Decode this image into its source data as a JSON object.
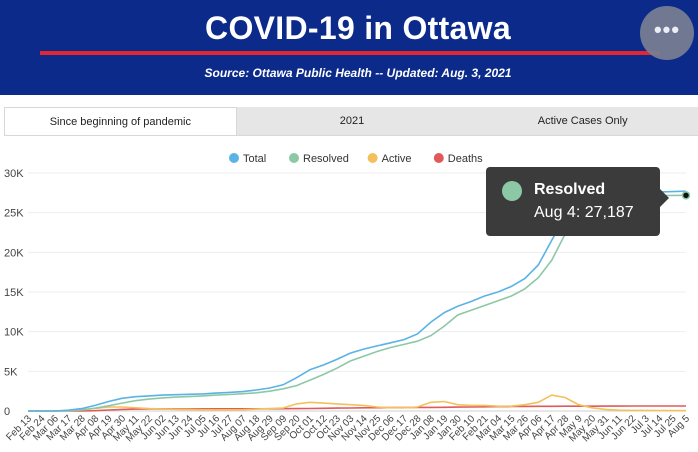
{
  "header": {
    "title": "COVID-19 in Ottawa",
    "subtitle": "Source:  Ottawa Public Health -- Updated:  Aug. 3, 2021",
    "background": "#0b2a8a",
    "accent": "#e3262f",
    "menu_icon": "more-horizontal-icon"
  },
  "tabs": [
    {
      "label": "Since beginning of pandemic",
      "active": true
    },
    {
      "label": "2021",
      "active": false
    },
    {
      "label": "Active Cases Only",
      "active": false
    }
  ],
  "tooltip": {
    "series": "Resolved",
    "value": "Aug 4: 27,187",
    "color": "#8dc8a6"
  },
  "chart_data": {
    "type": "line",
    "legend_position": "top-center",
    "grid": true,
    "ylim": [
      0,
      30000
    ],
    "yticks": [
      0,
      5000,
      10000,
      15000,
      20000,
      25000,
      30000
    ],
    "ytick_labels": [
      "0",
      "5K",
      "10K",
      "15K",
      "20K",
      "25K",
      "30K"
    ],
    "x": [
      "Feb 13",
      "Feb 24",
      "Mar 06",
      "Mar 17",
      "Mar 28",
      "Apr 08",
      "Apr 19",
      "Apr 30",
      "May 11",
      "May 22",
      "Jun 02",
      "Jun 13",
      "Jun 24",
      "Jul 05",
      "Jul 16",
      "Jul 27",
      "Aug 07",
      "Aug 18",
      "Aug 29",
      "Sep 09",
      "Sep 20",
      "Oct 01",
      "Oct 12",
      "Oct 23",
      "Nov 03",
      "Nov 14",
      "Nov 25",
      "Dec 06",
      "Dec 17",
      "Dec 28",
      "Jan 08",
      "Jan 19",
      "Jan 30",
      "Feb 10",
      "Feb 21",
      "Mar 04",
      "Mar 15",
      "Mar 26",
      "Apr 06",
      "Apr 17",
      "Apr 28",
      "May 9",
      "May 20",
      "May 31",
      "Jun 11",
      "Jun 22",
      "Jul 3",
      "Jul 14",
      "Jul 25",
      "Aug 5"
    ],
    "series": [
      {
        "name": "Total",
        "color": "#5ab3e4",
        "values": [
          0,
          0,
          0,
          100,
          300,
          700,
          1200,
          1600,
          1800,
          1900,
          2000,
          2050,
          2100,
          2150,
          2250,
          2350,
          2450,
          2650,
          2900,
          3300,
          4200,
          5200,
          5800,
          6500,
          7300,
          7800,
          8200,
          8600,
          9000,
          9700,
          11200,
          12400,
          13200,
          13800,
          14500,
          15000,
          15700,
          16700,
          18400,
          21500,
          24500,
          26000,
          26800,
          27200,
          27400,
          27500,
          27550,
          27600,
          27650,
          27700
        ]
      },
      {
        "name": "Resolved",
        "color": "#8dc8a6",
        "values": [
          0,
          0,
          0,
          40,
          120,
          350,
          650,
          1000,
          1300,
          1500,
          1650,
          1750,
          1820,
          1900,
          2000,
          2080,
          2180,
          2300,
          2500,
          2800,
          3200,
          3900,
          4600,
          5400,
          6300,
          6900,
          7500,
          8000,
          8400,
          8800,
          9500,
          10700,
          12100,
          12700,
          13300,
          13900,
          14500,
          15400,
          16800,
          19000,
          22300,
          24700,
          26100,
          26800,
          27000,
          27100,
          27150,
          27170,
          27180,
          27187
        ]
      },
      {
        "name": "Active",
        "color": "#f2c15b",
        "values": [
          0,
          0,
          0,
          60,
          180,
          330,
          500,
          500,
          400,
          300,
          250,
          200,
          180,
          160,
          150,
          150,
          160,
          240,
          300,
          380,
          900,
          1100,
          1000,
          900,
          800,
          700,
          500,
          400,
          400,
          500,
          1100,
          1200,
          800,
          700,
          700,
          600,
          600,
          800,
          1100,
          2000,
          1700,
          800,
          400,
          200,
          100,
          80,
          70,
          60,
          50,
          40
        ]
      },
      {
        "name": "Deaths",
        "color": "#e05a5a",
        "values": [
          0,
          0,
          0,
          1,
          5,
          40,
          120,
          200,
          240,
          260,
          265,
          268,
          270,
          272,
          273,
          274,
          275,
          276,
          280,
          285,
          300,
          320,
          340,
          360,
          380,
          400,
          420,
          430,
          440,
          450,
          460,
          470,
          490,
          510,
          530,
          550,
          570,
          585,
          590,
          595,
          600,
          605,
          610,
          615,
          620,
          625,
          628,
          630,
          632,
          635
        ]
      }
    ]
  }
}
